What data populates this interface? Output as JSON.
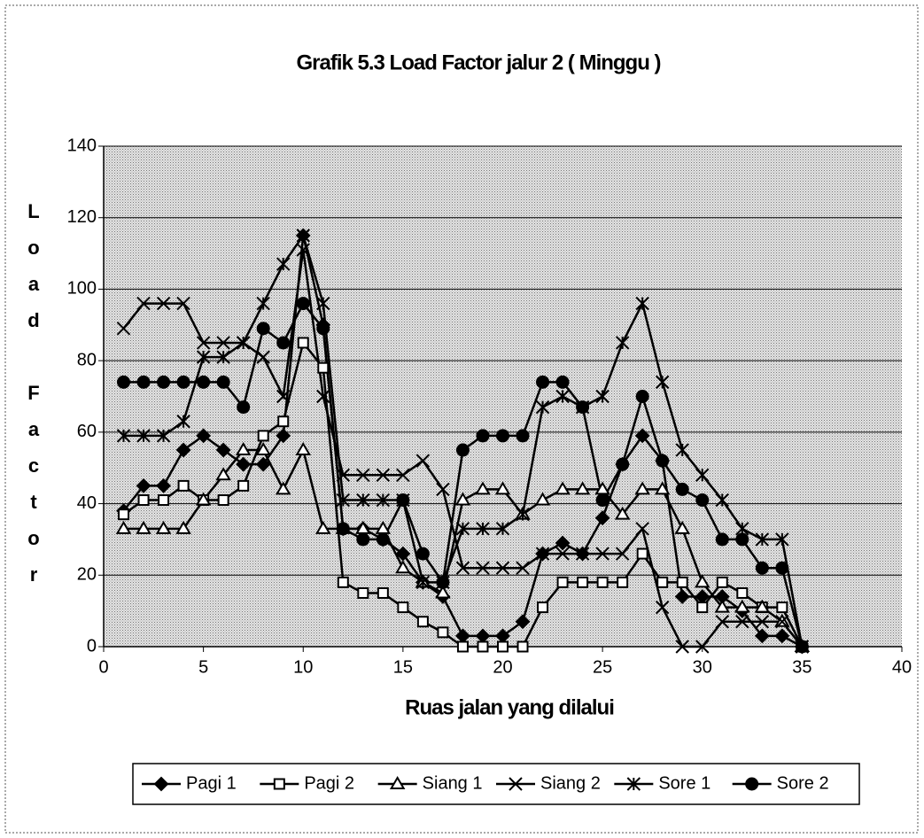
{
  "chart_data": {
    "type": "line",
    "title": "Grafik 5.3 Load Factor jalur 2 ( Minggu )",
    "x_label": "Ruas jalan yang dilalui",
    "y_label": "Load Factor",
    "x": [
      1,
      2,
      3,
      4,
      5,
      6,
      7,
      8,
      9,
      10,
      11,
      12,
      13,
      14,
      15,
      16,
      17,
      18,
      19,
      20,
      21,
      22,
      23,
      24,
      25,
      26,
      27,
      28,
      29,
      30,
      31,
      32,
      33,
      34,
      35
    ],
    "series": [
      {
        "name": "Pagi 1",
        "color": "#000000",
        "marker": "diamond",
        "values": [
          38,
          45,
          45,
          55,
          59,
          55,
          51,
          51,
          59,
          115,
          90,
          33,
          33,
          30,
          26,
          18,
          14,
          3,
          3,
          3,
          7,
          26,
          29,
          26,
          36,
          51,
          59,
          52,
          14,
          14,
          14,
          10,
          3,
          3,
          0
        ]
      },
      {
        "name": "Pagi 2",
        "color": "#000000",
        "marker": "square",
        "values": [
          37,
          41,
          41,
          45,
          41,
          41,
          45,
          59,
          63,
          85,
          78,
          18,
          15,
          15,
          11,
          7,
          4,
          0,
          0,
          0,
          0,
          11,
          18,
          18,
          18,
          18,
          26,
          18,
          18,
          11,
          18,
          15,
          11,
          11,
          0
        ]
      },
      {
        "name": "Siang 1",
        "color": "#000000",
        "marker": "triangle",
        "values": [
          33,
          33,
          33,
          33,
          41,
          48,
          55,
          55,
          44,
          55,
          33,
          33,
          33,
          33,
          22,
          18,
          15,
          41,
          44,
          44,
          37,
          41,
          44,
          44,
          44,
          37,
          44,
          44,
          33,
          18,
          11,
          11,
          11,
          7,
          0
        ]
      },
      {
        "name": "Siang 2",
        "color": "#000000",
        "marker": "x",
        "values": [
          89,
          96,
          96,
          96,
          85,
          85,
          85,
          81,
          70,
          111,
          70,
          48,
          48,
          48,
          48,
          52,
          44,
          22,
          22,
          22,
          22,
          26,
          26,
          26,
          26,
          26,
          33,
          11,
          0,
          0,
          7,
          7,
          7,
          7,
          0
        ]
      },
      {
        "name": "Sore 1",
        "color": "#000000",
        "marker": "asterisk",
        "values": [
          59,
          59,
          59,
          63,
          81,
          81,
          85,
          96,
          107,
          115,
          96,
          41,
          41,
          41,
          41,
          18,
          18,
          33,
          33,
          33,
          37,
          67,
          70,
          67,
          70,
          85,
          96,
          74,
          55,
          48,
          41,
          33,
          30,
          30,
          0
        ]
      },
      {
        "name": "Sore 2",
        "color": "#000000",
        "marker": "circle",
        "values": [
          74,
          74,
          74,
          74,
          74,
          74,
          67,
          89,
          85,
          96,
          89,
          33,
          30,
          30,
          41,
          26,
          18,
          55,
          59,
          59,
          59,
          74,
          74,
          67,
          41,
          51,
          70,
          52,
          44,
          41,
          30,
          30,
          22,
          22,
          0
        ]
      }
    ],
    "xlim": [
      0,
      40
    ],
    "xticks": [
      0,
      5,
      10,
      15,
      20,
      25,
      30,
      35,
      40
    ],
    "ylim": [
      0,
      140
    ],
    "yticks": [
      0,
      20,
      40,
      60,
      80,
      100,
      120,
      140
    ],
    "grid": true,
    "legend": "bottom"
  }
}
